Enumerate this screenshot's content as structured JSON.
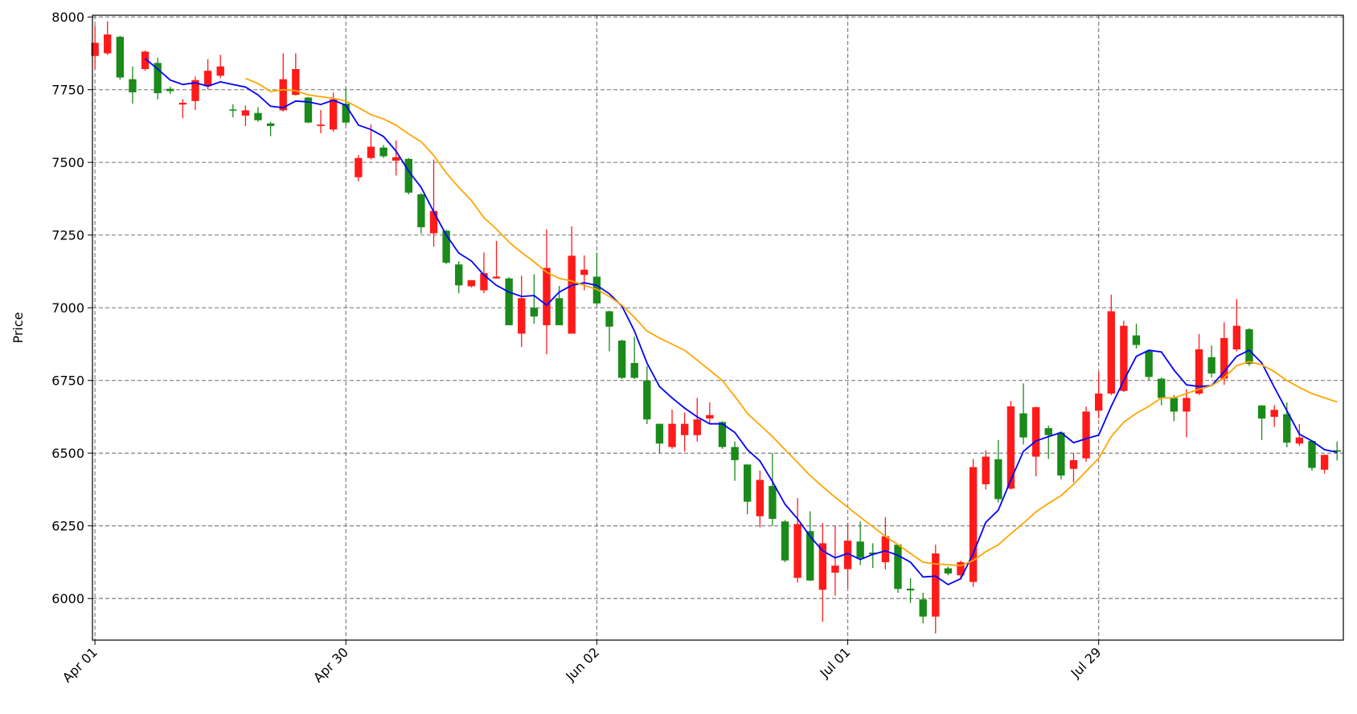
{
  "chart_data": {
    "type": "candlestick",
    "ylabel": "Price",
    "up_color": "#ff1a1a",
    "down_color": "#1a8a1a",
    "grid": true,
    "xlim": [
      -0.2,
      99.5
    ],
    "xticks": [
      {
        "value": 0,
        "label": "Apr 01"
      },
      {
        "value": 20,
        "label": "Apr 30"
      },
      {
        "value": 40,
        "label": "Jun 02"
      },
      {
        "value": 60,
        "label": "Jul 01"
      },
      {
        "value": 80,
        "label": "Jul 29"
      }
    ],
    "ylim": [
      5857,
      8006
    ],
    "yticks": [
      6000,
      6250,
      6500,
      6750,
      7000,
      7250,
      7500,
      7750,
      8000
    ],
    "open": [
      7866,
      7875,
      7932,
      7786,
      7821,
      7842,
      7753,
      7699,
      7711,
      7762,
      7798,
      7682,
      7661,
      7670,
      7634,
      7679,
      7732,
      7723,
      7625,
      7613,
      7702,
      7449,
      7515,
      7551,
      7506,
      7512,
      7390,
      7256,
      7265,
      7149,
      7074,
      7060,
      7101,
      7101,
      6911,
      7000,
      6940,
      7033,
      6911,
      7113,
      7107,
      6988,
      6887,
      6810,
      6750,
      6601,
      6521,
      6562,
      6562,
      6619,
      6607,
      6521,
      6461,
      6283,
      6387,
      6265,
      6071,
      6232,
      6030,
      6089,
      6101,
      6196,
      6158,
      6125,
      6185,
      6034,
      5997,
      5938,
      6104,
      6080,
      6057,
      6393,
      6479,
      6378,
      6637,
      6488,
      6586,
      6571,
      6446,
      6482,
      6646,
      6705,
      6714,
      6905,
      6851,
      6756,
      6690,
      6643,
      6705,
      6830,
      6756,
      6857,
      6926,
      6664,
      6625,
      6634,
      6533,
      6542,
      6443,
      6510
    ],
    "high": [
      7970,
      7985,
      7935,
      7830,
      7885,
      7860,
      7760,
      7717,
      7795,
      7855,
      7870,
      7700,
      7695,
      7690,
      7640,
      7875,
      7875,
      7725,
      7680,
      7740,
      7755,
      7525,
      7630,
      7560,
      7575,
      7515,
      7395,
      7510,
      7268,
      7160,
      7095,
      7190,
      7230,
      7105,
      7110,
      7115,
      7270,
      7075,
      7280,
      7180,
      7190,
      6990,
      6890,
      6900,
      6800,
      6601,
      6650,
      6640,
      6690,
      6675,
      6610,
      6540,
      6461,
      6440,
      6500,
      6270,
      6345,
      6300,
      6260,
      6250,
      6260,
      6265,
      6190,
      6280,
      6187,
      6070,
      6020,
      6185,
      6110,
      6130,
      6480,
      6510,
      6545,
      6680,
      6740,
      6660,
      6595,
      6575,
      6500,
      6660,
      6780,
      7045,
      6955,
      6945,
      6855,
      6760,
      6700,
      6720,
      6910,
      6870,
      6950,
      7030,
      6930,
      6665,
      6665,
      6675,
      6600,
      6545,
      6495,
      6540
    ],
    "low": [
      7821,
      7870,
      7785,
      7702,
      7815,
      7717,
      7735,
      7652,
      7680,
      7750,
      7790,
      7655,
      7625,
      7640,
      7590,
      7675,
      7730,
      7635,
      7600,
      7605,
      7630,
      7435,
      7510,
      7515,
      7455,
      7390,
      7255,
      7210,
      7150,
      7050,
      7070,
      7050,
      7100,
      6940,
      6865,
      6945,
      6840,
      6940,
      6911,
      7060,
      7010,
      6850,
      6755,
      6755,
      6600,
      6500,
      6515,
      6505,
      6540,
      6600,
      6515,
      6405,
      6290,
      6245,
      6250,
      6125,
      6055,
      6060,
      5920,
      6010,
      6035,
      6115,
      6105,
      6100,
      6020,
      5985,
      5915,
      5880,
      6080,
      6065,
      6040,
      6375,
      6330,
      6375,
      6530,
      6420,
      6480,
      6410,
      6400,
      6470,
      6620,
      6700,
      6710,
      6860,
      6750,
      6665,
      6610,
      6555,
      6700,
      6760,
      6735,
      6850,
      6800,
      6545,
      6590,
      6520,
      6525,
      6440,
      6430,
      6475
    ],
    "close": [
      7911,
      7940,
      7792,
      7741,
      7881,
      7738,
      7745,
      7705,
      7783,
      7815,
      7830,
      7678,
      7679,
      7645,
      7625,
      7786,
      7821,
      7637,
      7630,
      7717,
      7637,
      7515,
      7554,
      7521,
      7518,
      7396,
      7277,
      7333,
      7155,
      7077,
      7095,
      7119,
      7107,
      6940,
      7033,
      6970,
      7137,
      6940,
      7179,
      7131,
      7015,
      6935,
      6759,
      6759,
      6616,
      6533,
      6601,
      6601,
      6616,
      6631,
      6521,
      6476,
      6333,
      6408,
      6274,
      6131,
      6256,
      6062,
      6190,
      6113,
      6199,
      6140,
      6152,
      6214,
      6033,
      6028,
      5938,
      6155,
      6086,
      6125,
      6452,
      6488,
      6342,
      6661,
      6554,
      6658,
      6562,
      6423,
      6476,
      6643,
      6705,
      6988,
      6938,
      6872,
      6762,
      6690,
      6643,
      6690,
      6857,
      6774,
      6896,
      6938,
      6807,
      6619,
      6649,
      6536,
      6554,
      6449,
      6494,
      6505
    ],
    "lines": [
      {
        "color": "#0000ff",
        "values": [
          null,
          null,
          null,
          null,
          7857,
          7821,
          7783,
          7768,
          7774,
          7762,
          7777,
          7768,
          7759,
          7732,
          7693,
          7688,
          7711,
          7708,
          7699,
          7714,
          7696,
          7628,
          7613,
          7589,
          7539,
          7470,
          7414,
          7330,
          7250,
          7188,
          7161,
          7113,
          7077,
          7054,
          7039,
          7042,
          7009,
          7054,
          7077,
          7086,
          7077,
          7048,
          7006,
          6920,
          6810,
          6729,
          6690,
          6655,
          6625,
          6601,
          6601,
          6571,
          6512,
          6473,
          6402,
          6324,
          6274,
          6214,
          6164,
          6140,
          6155,
          6134,
          6152,
          6164,
          6149,
          6125,
          6074,
          6077,
          6048,
          6068,
          6155,
          6262,
          6304,
          6408,
          6506,
          6542,
          6557,
          6571,
          6536,
          6550,
          6562,
          6661,
          6750,
          6833,
          6854,
          6848,
          6786,
          6735,
          6729,
          6732,
          6780,
          6833,
          6854,
          6810,
          6726,
          6646,
          6565,
          6542,
          6512,
          6503
        ]
      },
      {
        "color": "#ffa500",
        "values": [
          null,
          null,
          null,
          null,
          null,
          null,
          null,
          null,
          null,
          null,
          null,
          null,
          7789,
          7771,
          7744,
          7750,
          7747,
          7732,
          7726,
          7720,
          7711,
          7688,
          7664,
          7649,
          7628,
          7598,
          7571,
          7524,
          7464,
          7414,
          7369,
          7310,
          7271,
          7226,
          7190,
          7158,
          7122,
          7101,
          7092,
          7077,
          7063,
          7039,
          7009,
          6967,
          6920,
          6896,
          6875,
          6854,
          6820,
          6785,
          6750,
          6695,
          6637,
          6597,
          6557,
          6512,
          6468,
          6423,
          6385,
          6348,
          6314,
          6280,
          6247,
          6214,
          6185,
          6155,
          6125,
          6119,
          6116,
          6113,
          6131,
          6161,
          6185,
          6223,
          6259,
          6298,
          6327,
          6354,
          6393,
          6438,
          6482,
          6557,
          6607,
          6637,
          6661,
          6690,
          6690,
          6705,
          6720,
          6732,
          6759,
          6801,
          6815,
          6804,
          6780,
          6750,
          6726,
          6705,
          6690,
          6676
        ]
      }
    ]
  }
}
